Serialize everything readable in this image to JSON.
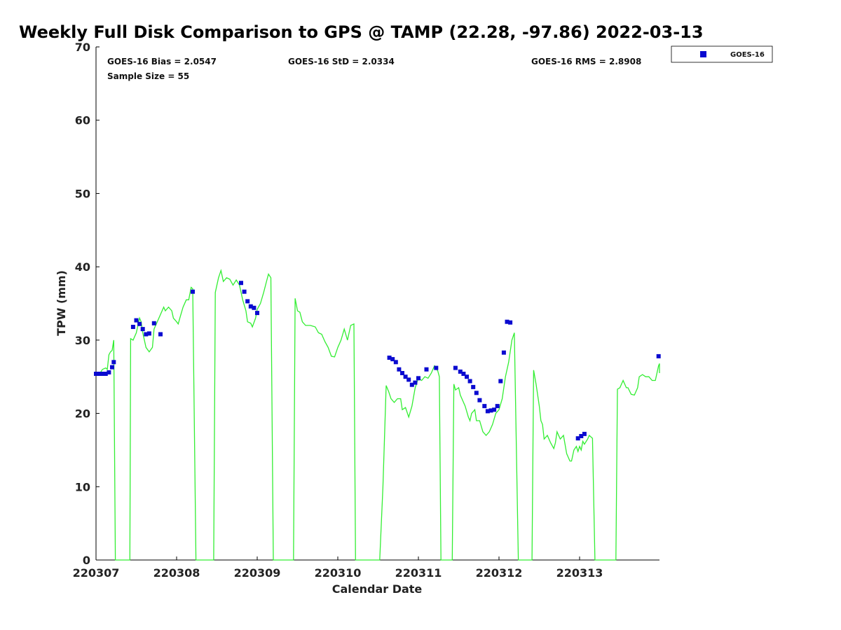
{
  "chart_data": {
    "type": "scatter",
    "title": "Weekly Full Disk Comparison to GPS @ TAMP (22.28, -97.86) 2022-03-13",
    "xlabel": "Calendar Date",
    "ylabel": "TPW (mm)",
    "xlim": [
      0,
      7
    ],
    "ylim": [
      0,
      70
    ],
    "x_ticks": [
      {
        "value": 0,
        "label": "220307"
      },
      {
        "value": 1,
        "label": "220308"
      },
      {
        "value": 2,
        "label": "220309"
      },
      {
        "value": 3,
        "label": "220310"
      },
      {
        "value": 4,
        "label": "220311"
      },
      {
        "value": 5,
        "label": "220312"
      },
      {
        "value": 6,
        "label": "220313"
      }
    ],
    "y_ticks": [
      0,
      10,
      20,
      30,
      40,
      50,
      60,
      70
    ],
    "grid": false,
    "legend": {
      "placement": "top-right outside",
      "entries": [
        "GOES-16"
      ]
    },
    "stats": {
      "bias": "GOES-16 Bias = 2.0547",
      "std": "GOES-16 StD = 2.0334",
      "rms": "GOES-16 RMS = 2.8908",
      "sample": "Sample Size = 55"
    },
    "colors": {
      "gps_line": "#33ee33",
      "goes_marker": "#0a0ad0"
    },
    "series": [
      {
        "kind": "line",
        "values": [
          [
            0.0,
            25.5
          ],
          [
            0.05,
            25.5
          ],
          [
            0.08,
            26.0
          ],
          [
            0.12,
            26.2
          ],
          [
            0.14,
            26.0
          ],
          [
            0.16,
            28.0
          ],
          [
            0.18,
            28.4
          ],
          [
            0.2,
            28.6
          ],
          [
            0.22,
            30.0
          ],
          [
            0.24,
            0
          ],
          [
            0.42,
            0
          ],
          [
            0.43,
            30.2
          ],
          [
            0.46,
            30.0
          ],
          [
            0.5,
            31.0
          ],
          [
            0.54,
            33.0
          ],
          [
            0.56,
            32.5
          ],
          [
            0.58,
            31.0
          ],
          [
            0.62,
            29.0
          ],
          [
            0.66,
            28.4
          ],
          [
            0.7,
            29.0
          ],
          [
            0.72,
            31.5
          ],
          [
            0.76,
            32.5
          ],
          [
            0.8,
            33.5
          ],
          [
            0.84,
            34.5
          ],
          [
            0.86,
            34.0
          ],
          [
            0.9,
            34.5
          ],
          [
            0.94,
            34.0
          ],
          [
            0.96,
            33.0
          ],
          [
            1.0,
            32.5
          ],
          [
            1.02,
            32.2
          ],
          [
            1.04,
            33.0
          ],
          [
            1.08,
            34.5
          ],
          [
            1.12,
            35.5
          ],
          [
            1.15,
            35.5
          ],
          [
            1.18,
            37.2
          ],
          [
            1.2,
            37.0
          ],
          [
            1.24,
            0
          ],
          [
            1.46,
            0
          ],
          [
            1.48,
            36.5
          ],
          [
            1.52,
            38.5
          ],
          [
            1.55,
            39.5
          ],
          [
            1.58,
            38.0
          ],
          [
            1.62,
            38.5
          ],
          [
            1.66,
            38.3
          ],
          [
            1.7,
            37.5
          ],
          [
            1.74,
            38.2
          ],
          [
            1.78,
            37.5
          ],
          [
            1.82,
            35.5
          ],
          [
            1.86,
            34.0
          ],
          [
            1.88,
            32.5
          ],
          [
            1.92,
            32.3
          ],
          [
            1.94,
            31.8
          ],
          [
            1.98,
            33.0
          ],
          [
            2.0,
            34.2
          ],
          [
            2.04,
            35.0
          ],
          [
            2.08,
            36.5
          ],
          [
            2.12,
            38.2
          ],
          [
            2.14,
            39.0
          ],
          [
            2.17,
            38.5
          ],
          [
            2.2,
            0
          ],
          [
            2.45,
            0
          ],
          [
            2.47,
            35.7
          ],
          [
            2.5,
            34.0
          ],
          [
            2.53,
            33.8
          ],
          [
            2.56,
            32.5
          ],
          [
            2.6,
            32.0
          ],
          [
            2.66,
            32.0
          ],
          [
            2.72,
            31.8
          ],
          [
            2.76,
            31.0
          ],
          [
            2.8,
            30.8
          ],
          [
            2.84,
            29.8
          ],
          [
            2.88,
            29.0
          ],
          [
            2.92,
            27.8
          ],
          [
            2.96,
            27.7
          ],
          [
            3.0,
            29.0
          ],
          [
            3.04,
            30.0
          ],
          [
            3.08,
            31.5
          ],
          [
            3.12,
            30.0
          ],
          [
            3.16,
            32.0
          ],
          [
            3.2,
            32.2
          ],
          [
            3.22,
            0
          ],
          [
            3.52,
            0
          ],
          [
            3.56,
            10.0
          ],
          [
            3.6,
            23.8
          ],
          [
            3.63,
            23.0
          ],
          [
            3.66,
            22.0
          ],
          [
            3.7,
            21.5
          ],
          [
            3.74,
            22.0
          ],
          [
            3.78,
            22.0
          ],
          [
            3.8,
            20.5
          ],
          [
            3.84,
            20.8
          ],
          [
            3.88,
            19.5
          ],
          [
            3.92,
            21.0
          ],
          [
            3.96,
            23.5
          ],
          [
            4.0,
            24.8
          ],
          [
            4.04,
            24.5
          ],
          [
            4.08,
            25.0
          ],
          [
            4.12,
            24.8
          ],
          [
            4.16,
            25.5
          ],
          [
            4.2,
            26.5
          ],
          [
            4.24,
            25.8
          ],
          [
            4.26,
            25.0
          ],
          [
            4.28,
            0
          ],
          [
            4.42,
            0
          ],
          [
            4.44,
            24.0
          ],
          [
            4.46,
            23.2
          ],
          [
            4.5,
            23.5
          ],
          [
            4.52,
            22.5
          ],
          [
            4.56,
            21.5
          ],
          [
            4.58,
            21.0
          ],
          [
            4.62,
            19.5
          ],
          [
            4.64,
            19.0
          ],
          [
            4.66,
            20.0
          ],
          [
            4.7,
            20.5
          ],
          [
            4.72,
            19.0
          ],
          [
            4.76,
            19.0
          ],
          [
            4.8,
            17.5
          ],
          [
            4.84,
            17.0
          ],
          [
            4.88,
            17.5
          ],
          [
            4.92,
            18.5
          ],
          [
            4.96,
            20.0
          ],
          [
            5.0,
            20.5
          ],
          [
            5.04,
            22.0
          ],
          [
            5.08,
            25.0
          ],
          [
            5.12,
            27.0
          ],
          [
            5.16,
            30.0
          ],
          [
            5.19,
            31.0
          ],
          [
            5.24,
            0
          ],
          [
            5.41,
            0
          ],
          [
            5.43,
            25.9
          ],
          [
            5.46,
            24.0
          ],
          [
            5.5,
            21.0
          ],
          [
            5.52,
            19.0
          ],
          [
            5.54,
            18.5
          ],
          [
            5.56,
            16.5
          ],
          [
            5.6,
            17.0
          ],
          [
            5.64,
            16.0
          ],
          [
            5.68,
            15.2
          ],
          [
            5.7,
            16.0
          ],
          [
            5.72,
            17.5
          ],
          [
            5.76,
            16.5
          ],
          [
            5.8,
            17.0
          ],
          [
            5.84,
            14.5
          ],
          [
            5.88,
            13.5
          ],
          [
            5.9,
            13.5
          ],
          [
            5.93,
            15.0
          ],
          [
            5.96,
            15.5
          ],
          [
            5.98,
            14.8
          ],
          [
            6.0,
            15.5
          ],
          [
            6.02,
            15.0
          ],
          [
            6.04,
            16.2
          ],
          [
            6.06,
            15.8
          ],
          [
            6.1,
            16.5
          ],
          [
            6.12,
            17.0
          ],
          [
            6.16,
            16.6
          ],
          [
            6.19,
            0
          ],
          [
            6.45,
            0
          ],
          [
            6.47,
            23.3
          ],
          [
            6.5,
            23.5
          ],
          [
            6.54,
            24.5
          ],
          [
            6.58,
            23.5
          ],
          [
            6.6,
            23.5
          ],
          [
            6.64,
            22.6
          ],
          [
            6.68,
            22.5
          ],
          [
            6.72,
            23.5
          ],
          [
            6.74,
            25.0
          ],
          [
            6.78,
            25.3
          ],
          [
            6.82,
            25.0
          ],
          [
            6.86,
            25.0
          ],
          [
            6.9,
            24.5
          ],
          [
            6.94,
            24.5
          ],
          [
            6.98,
            26.5
          ],
          [
            7.0,
            26.8
          ],
          [
            7.02,
            25.5
          ],
          [
            7.06,
            26.0
          ],
          [
            7.1,
            26.5
          ]
        ]
      },
      {
        "name": "GOES-16",
        "kind": "points",
        "values": [
          [
            0.0,
            25.4
          ],
          [
            0.04,
            25.4
          ],
          [
            0.08,
            25.4
          ],
          [
            0.12,
            25.4
          ],
          [
            0.16,
            25.6
          ],
          [
            0.2,
            26.3
          ],
          [
            0.22,
            27.0
          ],
          [
            0.46,
            31.8
          ],
          [
            0.5,
            32.7
          ],
          [
            0.54,
            32.2
          ],
          [
            0.58,
            31.5
          ],
          [
            0.62,
            30.8
          ],
          [
            0.66,
            30.9
          ],
          [
            0.72,
            32.3
          ],
          [
            0.8,
            30.8
          ],
          [
            1.2,
            36.6
          ],
          [
            1.8,
            37.8
          ],
          [
            1.84,
            36.6
          ],
          [
            1.88,
            35.3
          ],
          [
            1.92,
            34.6
          ],
          [
            1.96,
            34.4
          ],
          [
            2.0,
            33.7
          ],
          [
            3.64,
            27.6
          ],
          [
            3.68,
            27.4
          ],
          [
            3.72,
            27.0
          ],
          [
            3.76,
            26.0
          ],
          [
            3.8,
            25.5
          ],
          [
            3.84,
            25.0
          ],
          [
            3.88,
            24.6
          ],
          [
            3.92,
            23.9
          ],
          [
            3.96,
            24.2
          ],
          [
            4.0,
            24.8
          ],
          [
            4.1,
            26.0
          ],
          [
            4.22,
            26.2
          ],
          [
            4.46,
            26.2
          ],
          [
            4.52,
            25.7
          ],
          [
            4.56,
            25.4
          ],
          [
            4.6,
            25.0
          ],
          [
            4.64,
            24.4
          ],
          [
            4.68,
            23.6
          ],
          [
            4.72,
            22.8
          ],
          [
            4.76,
            21.8
          ],
          [
            4.82,
            21.0
          ],
          [
            4.86,
            20.3
          ],
          [
            4.9,
            20.4
          ],
          [
            4.94,
            20.5
          ],
          [
            4.98,
            21.0
          ],
          [
            5.02,
            24.4
          ],
          [
            5.06,
            28.3
          ],
          [
            5.1,
            32.5
          ],
          [
            5.14,
            32.4
          ],
          [
            5.98,
            16.6
          ],
          [
            6.02,
            16.9
          ],
          [
            6.06,
            17.2
          ],
          [
            6.98,
            27.8
          ],
          [
            7.02,
            28.6
          ]
        ]
      }
    ]
  }
}
